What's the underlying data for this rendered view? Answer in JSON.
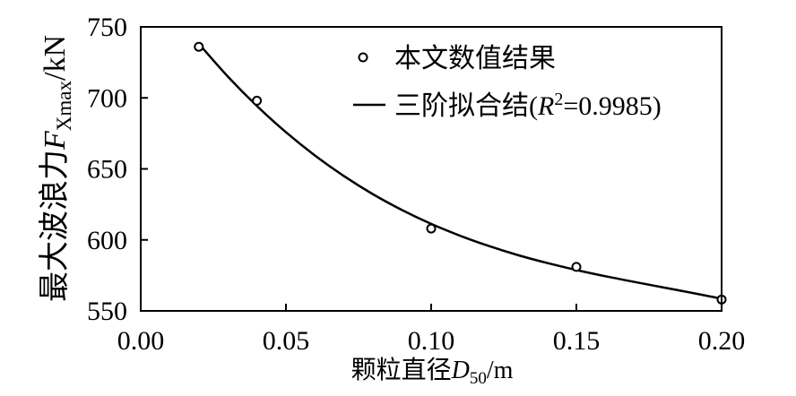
{
  "chart_data": {
    "type": "scatter",
    "xlabel": {
      "prefix": "颗粒直径",
      "symbol": "D",
      "subscript": "50",
      "unit": "/m"
    },
    "ylabel": {
      "prefix": "最大波浪力",
      "symbol": "F",
      "subscript": "Xmax",
      "unit": "/kN"
    },
    "xlim": [
      0.0,
      0.2
    ],
    "ylim": [
      550,
      750
    ],
    "xticks": [
      0.0,
      0.05,
      0.1,
      0.15,
      0.2
    ],
    "xtick_labels": [
      "0.00",
      "0.05",
      "0.10",
      "0.15",
      "0.20"
    ],
    "yticks": [
      550,
      600,
      650,
      700,
      750
    ],
    "ytick_labels": [
      "550",
      "600",
      "650",
      "700",
      "750"
    ],
    "grid": false,
    "legend": {
      "placement": "top-center"
    },
    "series": [
      {
        "name": "本文数值结果",
        "type": "scatter",
        "marker": "open-circle",
        "color": "#000000",
        "x": [
          0.02,
          0.04,
          0.1,
          0.15,
          0.2
        ],
        "y": [
          736,
          698,
          608,
          581,
          558
        ]
      },
      {
        "name": {
          "prefix": "三阶拟合结(",
          "symbol": "R",
          "superscript": "2",
          "suffix": "=0.9985)"
        },
        "type": "line",
        "color": "#000000",
        "x": [
          0.02,
          0.03,
          0.04,
          0.05,
          0.06,
          0.07,
          0.08,
          0.09,
          0.1,
          0.11,
          0.12,
          0.13,
          0.14,
          0.15,
          0.16,
          0.17,
          0.18,
          0.19,
          0.2
        ],
        "y": [
          738.1,
          715.0,
          694.3,
          675.8,
          659.4,
          644.9,
          632.1,
          621.0,
          611.3,
          602.9,
          595.6,
          589.2,
          583.7,
          578.8,
          574.4,
          570.4,
          566.5,
          562.6,
          558.6
        ]
      }
    ]
  }
}
